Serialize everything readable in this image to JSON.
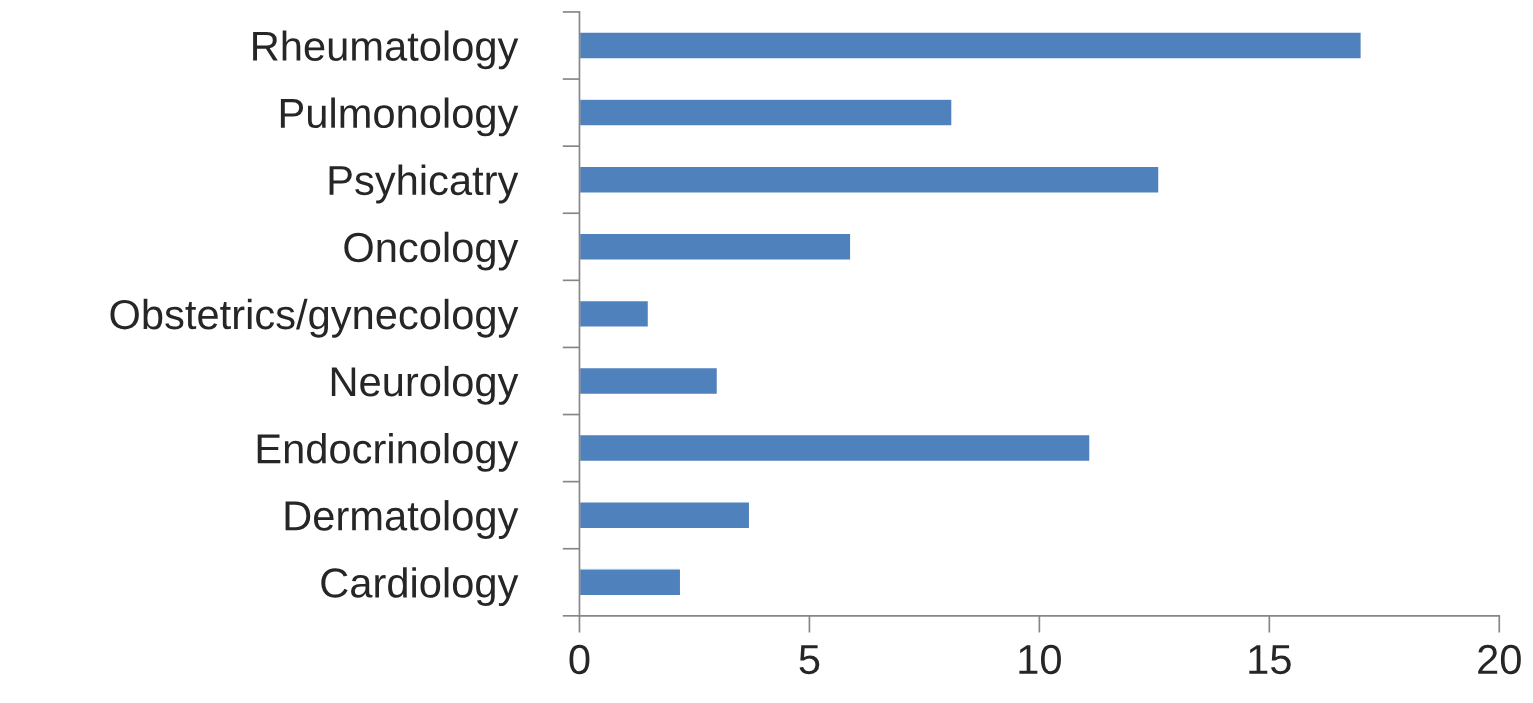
{
  "chart_data": {
    "type": "bar",
    "orientation": "horizontal",
    "categories": [
      "Rheumatology",
      "Pulmonology",
      "Psyhicatry",
      "Oncology",
      "Obstetrics/gynecology",
      "Neurology",
      "Endocrinology",
      "Dermatology",
      "Cardiology"
    ],
    "values": [
      17.0,
      8.1,
      12.6,
      5.9,
      1.5,
      3.0,
      11.1,
      3.7,
      2.2
    ],
    "color": "#4f81bd",
    "xlim": [
      0,
      20
    ],
    "xticks": [
      0,
      5,
      10,
      15,
      20
    ],
    "grid": false,
    "legend": false
  }
}
